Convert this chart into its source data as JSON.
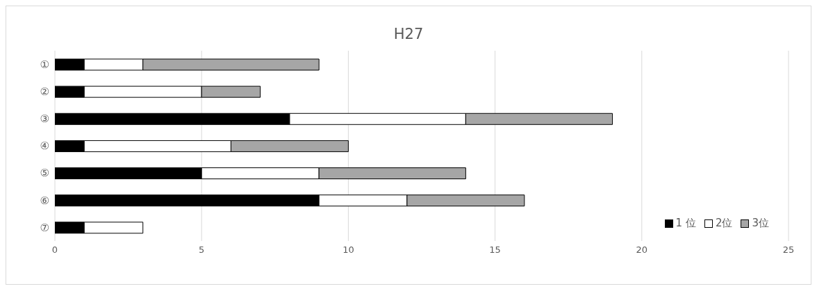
{
  "chart_data": {
    "type": "bar",
    "orientation": "horizontal",
    "stacked": true,
    "title": "H27",
    "categories": [
      "①",
      "②",
      "③",
      "④",
      "⑤",
      "⑥",
      "⑦"
    ],
    "series": [
      {
        "name": "1 位",
        "color": "#000000",
        "values": [
          1,
          1,
          8,
          1,
          5,
          9,
          1
        ]
      },
      {
        "name": "2位",
        "color": "#ffffff",
        "values": [
          2,
          4,
          6,
          5,
          4,
          3,
          2
        ]
      },
      {
        "name": "3位",
        "color": "#a6a6a6",
        "values": [
          6,
          2,
          5,
          4,
          5,
          4,
          0
        ]
      }
    ],
    "xlim": [
      0,
      25
    ],
    "xticks": [
      0,
      5,
      10,
      15,
      20,
      25
    ],
    "grid": "x",
    "legend": "bottom right"
  }
}
